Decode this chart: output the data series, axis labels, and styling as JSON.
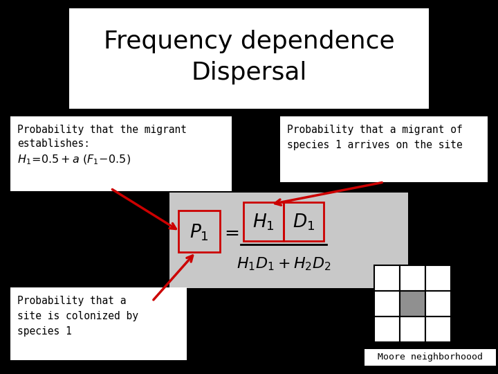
{
  "background_color": "#000000",
  "title_box_color": "#ffffff",
  "title_text": "Frequency dependence\nDispersal",
  "title_fontsize": 26,
  "label_box_color": "#ffffff",
  "text_color_black": "#000000",
  "red_color": "#cc0000",
  "formula_box_color": "#c8c8c8",
  "box1_line1": "Probability that the migrant",
  "box1_line2": "establishes:",
  "box1_line3": "H",
  "box2_line1": "Probability that a migrant of",
  "box2_line2": "species 1 arrives on the site",
  "box3_line1": "Probability that a",
  "box3_line2": "site is colonized by",
  "box3_line3": "species 1",
  "moore_label": "Moore neighborhoood",
  "font_size_labels": 10.5
}
